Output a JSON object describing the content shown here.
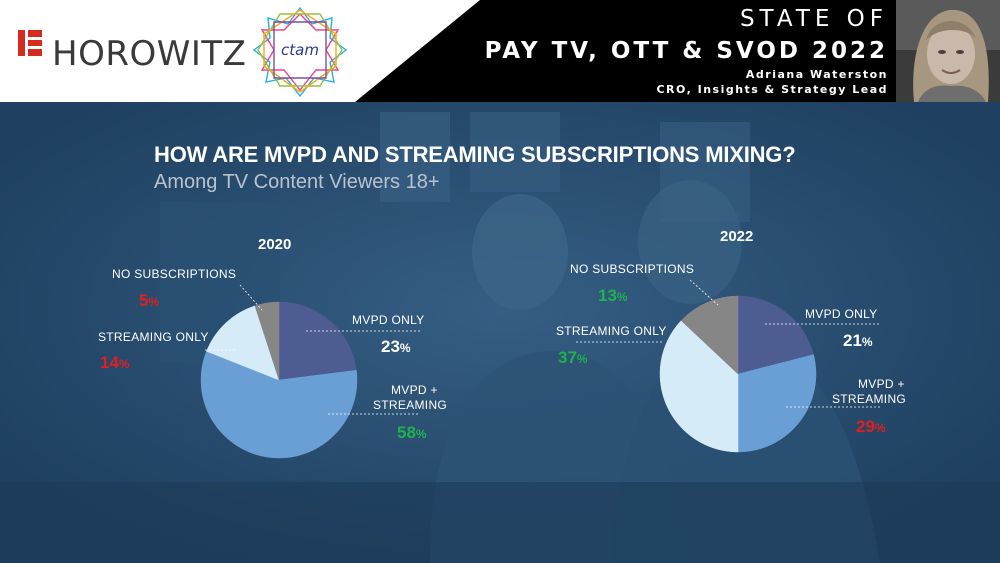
{
  "header": {
    "brand_name": "HOROWITZ",
    "partner_logo_text": "ctam",
    "title_line1": "STATE OF",
    "title_line2": "PAY TV, OTT & SVOD 2022",
    "presenter_name": "Adriana Waterston",
    "presenter_role": "CRO, Insights & Strategy Lead"
  },
  "slide": {
    "title": "HOW ARE MVPD AND STREAMING SUBSCRIPTIONS MIXING?",
    "subtitle": "Among TV Content Viewers 18+"
  },
  "colors": {
    "mvpd_only": "#4d5d92",
    "mvpd_streaming": "#6a9fd6",
    "streaming_only": "#d6ebf8",
    "no_subscriptions": "#868686",
    "decrease": "#e02020",
    "increase": "#1fb24f",
    "neutral": "#ffffff"
  },
  "chart_data": [
    {
      "type": "pie",
      "title": "2020",
      "categories": [
        "MVPD ONLY",
        "MVPD + STREAMING",
        "STREAMING  ONLY",
        "NO SUBSCRIPTIONS"
      ],
      "values": [
        23,
        58,
        14,
        5
      ],
      "unit": "%",
      "labels": {
        "mvpd_only": "MVPD ONLY",
        "mvpd_streaming_1": "MVPD +",
        "mvpd_streaming_2": "STREAMING",
        "streaming_only": "STREAMING  ONLY",
        "no_subscriptions": "NO SUBSCRIPTIONS"
      },
      "display": {
        "mvpd_only": "23",
        "mvpd_streaming": "58",
        "streaming_only": "14",
        "no_subscriptions": "5"
      }
    },
    {
      "type": "pie",
      "title": "2022",
      "categories": [
        "MVPD ONLY",
        "MVPD + STREAMING",
        "STREAMING  ONLY",
        "NO SUBSCRIPTIONS"
      ],
      "values": [
        21,
        29,
        37,
        13
      ],
      "unit": "%",
      "labels": {
        "mvpd_only": "MVPD ONLY",
        "mvpd_streaming_1": "MVPD +",
        "mvpd_streaming_2": "STREAMING",
        "streaming_only": "STREAMING  ONLY",
        "no_subscriptions": "NO SUBSCRIPTIONS"
      },
      "display": {
        "mvpd_only": "21",
        "mvpd_streaming": "29",
        "streaming_only": "37",
        "no_subscriptions": "13"
      }
    }
  ]
}
